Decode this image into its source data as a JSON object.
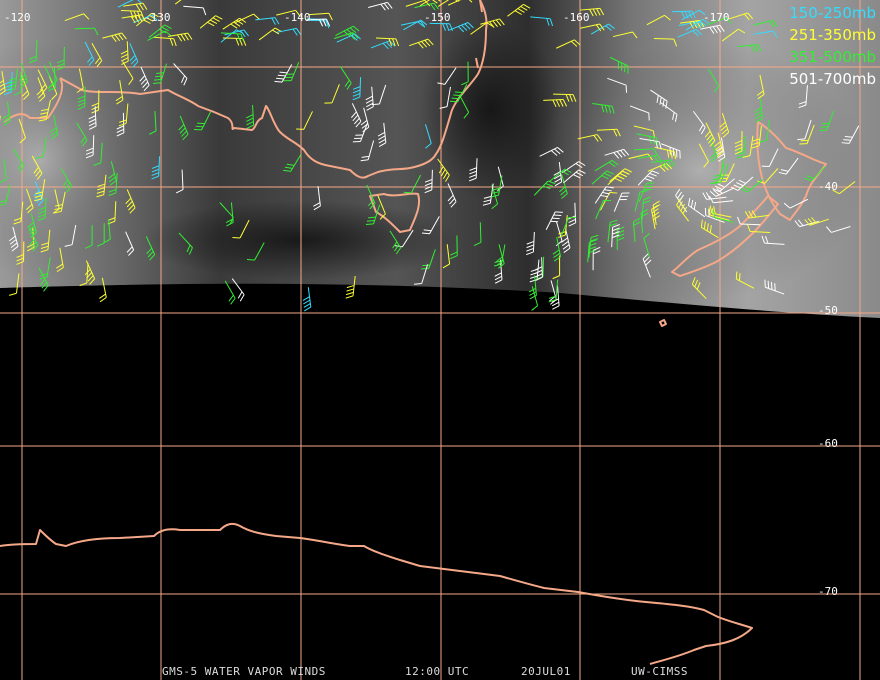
{
  "longitude_labels": [
    "-120",
    "-130",
    "-140",
    "-150",
    "-160",
    "-170"
  ],
  "latitude_labels": [
    "-40",
    "-50",
    "-60",
    "-70"
  ],
  "legend": [
    {
      "label": "150-250mb",
      "color": "#33ddff"
    },
    {
      "label": "251-350mb",
      "color": "#ffff33"
    },
    {
      "label": "351-500mb",
      "color": "#33ee33"
    },
    {
      "label": "501-700mb",
      "color": "#ffffff"
    }
  ],
  "footer": {
    "satellite": "GMS-5 WATER VAPOR WINDS",
    "time": "12:00 UTC",
    "date": "20JUL01",
    "source": "UW-CIMSS"
  },
  "colors": {
    "coastline": "#f4a888",
    "gridline": "#f4a888",
    "background": "#000000"
  }
}
